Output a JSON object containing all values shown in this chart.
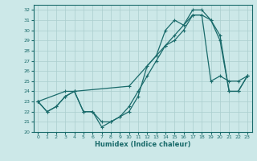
{
  "xlabel": "Humidex (Indice chaleur)",
  "xlim": [
    -0.5,
    23.5
  ],
  "ylim": [
    20,
    32.5
  ],
  "yticks": [
    20,
    21,
    22,
    23,
    24,
    25,
    26,
    27,
    28,
    29,
    30,
    31,
    32
  ],
  "xticks": [
    0,
    1,
    2,
    3,
    4,
    5,
    6,
    7,
    8,
    9,
    10,
    11,
    12,
    13,
    14,
    15,
    16,
    17,
    18,
    19,
    20,
    21,
    22,
    23
  ],
  "bg_color": "#cce8e8",
  "line_color": "#1a6b6b",
  "grid_color": "#aacece",
  "series": [
    {
      "x": [
        0,
        1,
        2,
        3,
        4,
        5,
        6,
        7,
        8,
        9,
        10,
        11,
        12,
        13,
        14,
        15,
        16,
        17,
        18,
        19,
        20,
        21,
        22,
        23
      ],
      "y": [
        23,
        22,
        22.5,
        23.5,
        24,
        22,
        22,
        20.5,
        21,
        21.5,
        22,
        23.5,
        26.5,
        27.5,
        30,
        31,
        30.5,
        32,
        32,
        31,
        29,
        24,
        24,
        25.5
      ]
    },
    {
      "x": [
        0,
        3,
        4,
        10,
        14,
        15,
        16,
        17,
        18,
        19,
        20,
        21,
        22,
        23
      ],
      "y": [
        23,
        24,
        24,
        24.5,
        28.5,
        29,
        30,
        31.5,
        31.5,
        25,
        25.5,
        25,
        25,
        25.5
      ]
    },
    {
      "x": [
        0,
        1,
        2,
        3,
        4,
        5,
        6,
        7,
        8,
        9,
        10,
        11,
        12,
        13,
        14,
        15,
        16,
        17,
        18,
        19,
        20,
        21,
        22,
        23
      ],
      "y": [
        23,
        22,
        22.5,
        23.5,
        24,
        22,
        22,
        21,
        21,
        21.5,
        22.5,
        24,
        25.5,
        27,
        28.5,
        29.5,
        30.5,
        31.5,
        31.5,
        31,
        29.5,
        24,
        24,
        25.5
      ]
    }
  ]
}
